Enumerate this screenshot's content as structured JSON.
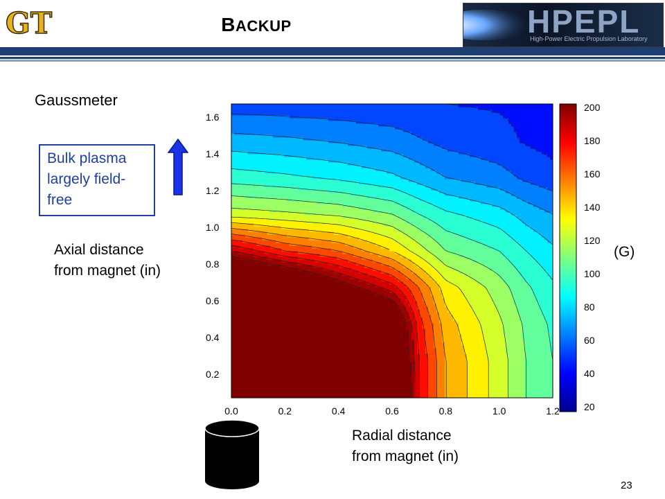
{
  "header": {
    "title_first": "B",
    "title_rest": "ACKUP",
    "logo_right_name": "HPEPL",
    "logo_right_subtitle": "High-Power Electric Propulsion Laboratory",
    "logo_left_icon": "gt-logo-icon"
  },
  "labels": {
    "gaussmeter": "Gaussmeter",
    "plasma_note": "Bulk plasma\nlargely field-\nfree",
    "axial": "Axial distance\nfrom magnet (in)",
    "radial": "Radial distance\nfrom magnet (in)",
    "units": "(G)",
    "page_number": "23"
  },
  "colors": {
    "header_bar": "#1f3f73",
    "note_text": "#1f3f9f",
    "arrow_fill": "#1a33e6"
  },
  "chart_data": {
    "type": "heatmap",
    "subtype": "filled-contour",
    "x": [
      0.0,
      0.2,
      0.4,
      0.6,
      0.7,
      0.8,
      1.0,
      1.1,
      1.2
    ],
    "y": [
      0.0,
      0.2,
      0.4,
      0.6,
      0.8,
      1.0,
      1.2,
      1.4,
      1.6,
      1.7
    ],
    "x_ticks": [
      "0.0",
      "0.2",
      "0.4",
      "0.6",
      "0.8",
      "1.0",
      "1.2"
    ],
    "x_tick_values": [
      0.0,
      0.2,
      0.4,
      0.6,
      0.8,
      1.0,
      1.2
    ],
    "y_ticks": [
      "0.2",
      "0.4",
      "0.6",
      "0.8",
      "1.0",
      "1.2",
      "1.4",
      "1.6"
    ],
    "y_tick_values": [
      0.2,
      0.4,
      0.6,
      0.8,
      1.0,
      1.2,
      1.4,
      1.6
    ],
    "xlim": [
      0.0,
      1.2
    ],
    "ylim": [
      0.0,
      1.7
    ],
    "values": [
      [
        340,
        320,
        300,
        260,
        180,
        150,
        125,
        110,
        100
      ],
      [
        320,
        300,
        280,
        240,
        180,
        150,
        125,
        110,
        100
      ],
      [
        300,
        280,
        260,
        230,
        175,
        145,
        122,
        108,
        98
      ],
      [
        260,
        240,
        210,
        185,
        160,
        135,
        115,
        102,
        92
      ],
      [
        190,
        170,
        160,
        140,
        125,
        110,
        100,
        90,
        82
      ],
      [
        125,
        122,
        118,
        110,
        100,
        92,
        84,
        76,
        70
      ],
      [
        95,
        92,
        88,
        82,
        76,
        70,
        64,
        58,
        54
      ],
      [
        74,
        72,
        69,
        65,
        61,
        57,
        53,
        49,
        46
      ],
      [
        55,
        54,
        53,
        52,
        51,
        50,
        49,
        48,
        47
      ],
      [
        48,
        47,
        46,
        45,
        44,
        43,
        42,
        41,
        40
      ]
    ],
    "colorbar": {
      "range": [
        20,
        200
      ],
      "ticks": [
        "20",
        "40",
        "60",
        "80",
        "100",
        "120",
        "140",
        "160",
        "180",
        "200"
      ],
      "tick_values": [
        20,
        40,
        60,
        80,
        100,
        120,
        140,
        160,
        180,
        200
      ],
      "colormap": "jet"
    },
    "levels": [
      40,
      50,
      60,
      70,
      80,
      90,
      100,
      110,
      120,
      130,
      140,
      150,
      160,
      170,
      180,
      190,
      200
    ]
  }
}
